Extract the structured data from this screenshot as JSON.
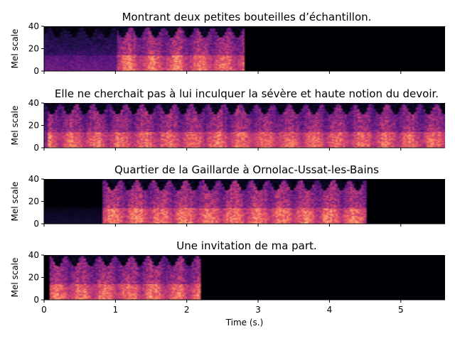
{
  "chart_data": {
    "type": "heatmap",
    "colormap": "magma",
    "xlabel": "Time (s.)",
    "x_ticks": [
      0,
      1,
      2,
      3,
      4,
      5
    ],
    "xlim": [
      0,
      5.62
    ],
    "panels": [
      {
        "title": "Montrant deux petites bouteilles d’échantillon.",
        "ylabel": "Mel scale",
        "ylim": [
          0,
          40
        ],
        "y_ticks": [
          0,
          20,
          40
        ],
        "signal_start": 0.0,
        "signal_end": 2.8,
        "speech_start": 1.02,
        "speech_end": 2.8,
        "lead_level": 0.42,
        "intensity": 0.82
      },
      {
        "title": "Elle ne cherchait pas à lui inculquer la sévère et haute notion du devoir.",
        "ylabel": "Mel scale",
        "ylim": [
          0,
          40
        ],
        "y_ticks": [
          0,
          20,
          40
        ],
        "signal_start": 0.0,
        "signal_end": 5.62,
        "speech_start": 0.05,
        "speech_end": 5.62,
        "lead_level": 0.55,
        "intensity": 0.8
      },
      {
        "title": "Quartier de la Gaillarde à Ornolac-Ussat-les-Bains",
        "ylabel": "Mel scale",
        "ylim": [
          0,
          40
        ],
        "y_ticks": [
          0,
          20,
          40
        ],
        "signal_start": 0.0,
        "signal_end": 4.53,
        "speech_start": 0.83,
        "speech_end": 4.53,
        "lead_level": 0.12,
        "intensity": 0.85
      },
      {
        "title": "Une invitation de ma part.",
        "ylabel": "Mel scale",
        "ylim": [
          0,
          40
        ],
        "y_ticks": [
          0,
          20,
          40
        ],
        "signal_start": 0.08,
        "signal_end": 2.2,
        "speech_start": 0.08,
        "speech_end": 2.2,
        "lead_level": 0.6,
        "intensity": 0.82
      }
    ]
  }
}
